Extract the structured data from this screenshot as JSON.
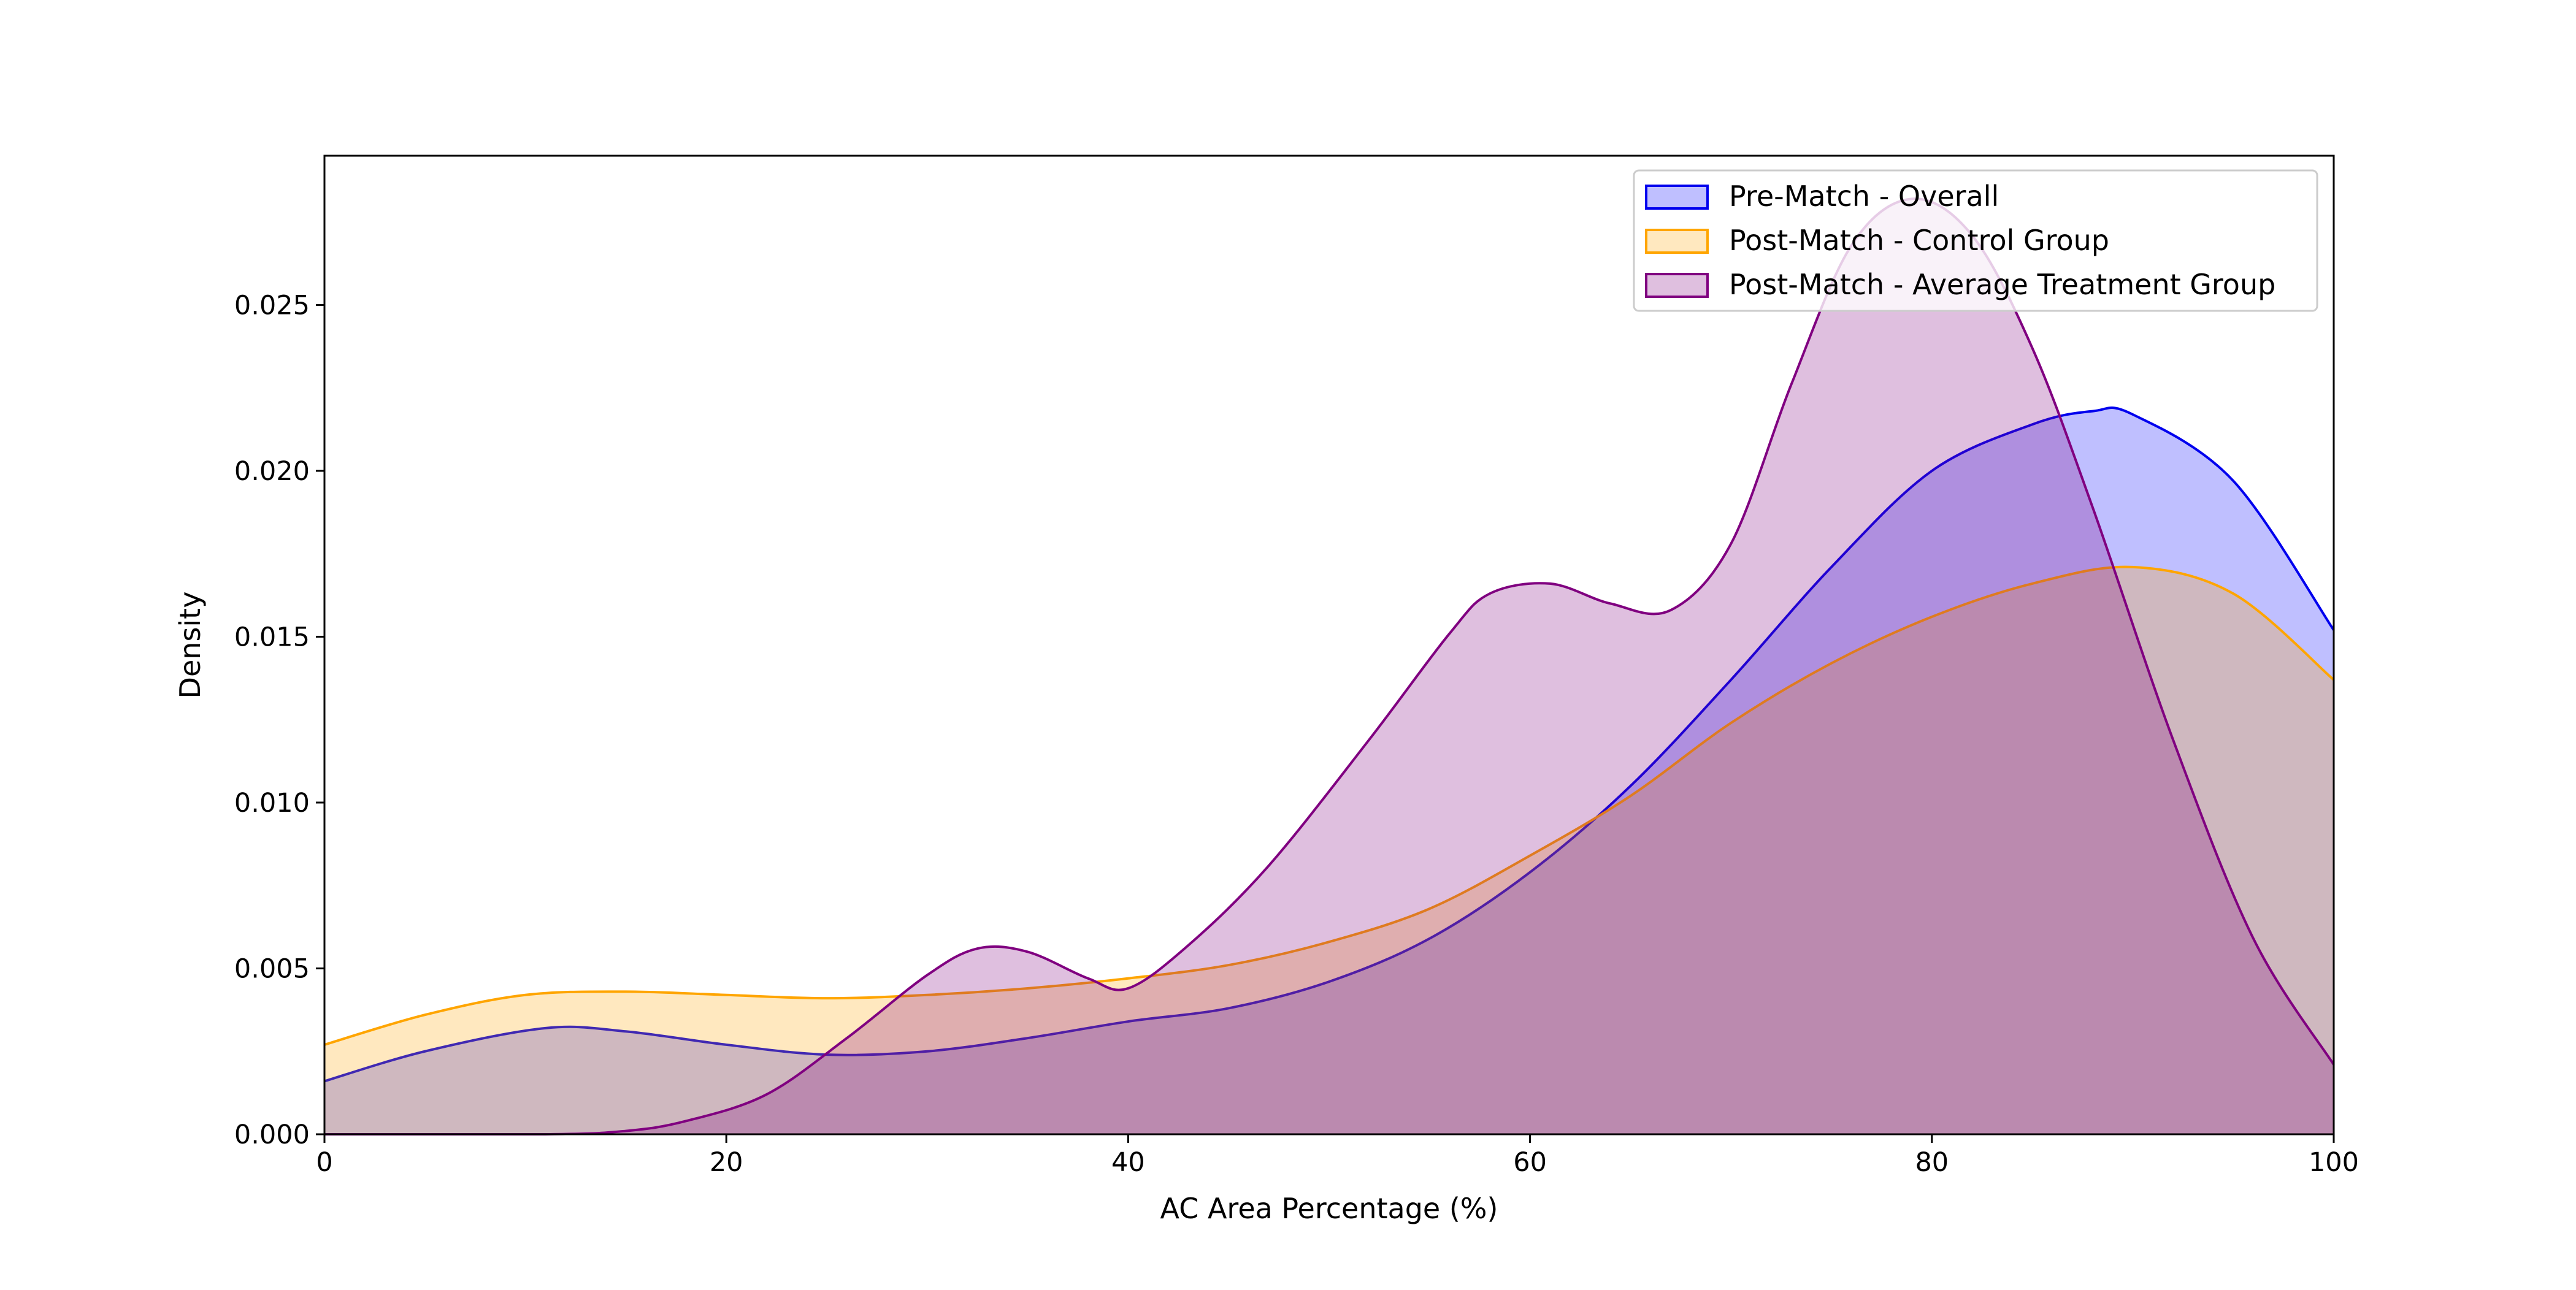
{
  "chart_data": {
    "type": "area",
    "title": "",
    "xlabel": "AC Area Percentage (%)",
    "ylabel": "Density",
    "xlim": [
      0,
      100
    ],
    "ylim": [
      0,
      0.0295
    ],
    "grid": false,
    "legend_position": "top-right",
    "x_ticks": [
      0,
      20,
      40,
      60,
      80,
      100
    ],
    "x_tick_labels": [
      "0",
      "20",
      "40",
      "60",
      "80",
      "100"
    ],
    "y_ticks": [
      0.0,
      0.005,
      0.01,
      0.015,
      0.02,
      0.025
    ],
    "y_tick_labels": [
      "0.000",
      "0.005",
      "0.010",
      "0.015",
      "0.020",
      "0.025"
    ],
    "series": [
      {
        "name": "Pre-Match - Overall",
        "color": "#0000ee",
        "fill": "#0000ff",
        "x": [
          0,
          5,
          11,
          15,
          20,
          25,
          30,
          35,
          40,
          45,
          50,
          55,
          60,
          65,
          70,
          75,
          80,
          85,
          88,
          90,
          95,
          100
        ],
        "y": [
          0.0016,
          0.0025,
          0.0032,
          0.0031,
          0.0027,
          0.0024,
          0.0025,
          0.0029,
          0.0034,
          0.0038,
          0.0046,
          0.0059,
          0.0079,
          0.0105,
          0.0137,
          0.0171,
          0.02,
          0.0214,
          0.0218,
          0.0217,
          0.0197,
          0.0152
        ]
      },
      {
        "name": "Post-Match - Control Group",
        "color": "#ffa500",
        "fill": "#ffa500",
        "x": [
          0,
          5,
          10,
          15,
          20,
          25,
          30,
          35,
          40,
          45,
          50,
          55,
          60,
          65,
          70,
          75,
          80,
          85,
          90,
          95,
          100
        ],
        "y": [
          0.0027,
          0.0036,
          0.0042,
          0.0043,
          0.0042,
          0.0041,
          0.0042,
          0.0044,
          0.0047,
          0.0051,
          0.0058,
          0.0068,
          0.0084,
          0.0102,
          0.0124,
          0.0142,
          0.0156,
          0.0166,
          0.0171,
          0.0163,
          0.0137
        ]
      },
      {
        "name": "Post-Match - Average Treatment Group",
        "color": "#800080",
        "fill": "#800080",
        "x": [
          0,
          11,
          15,
          18,
          22,
          26,
          30,
          32.5,
          35,
          38,
          40,
          43,
          47,
          52,
          56,
          58,
          61,
          64,
          67,
          70,
          73,
          76,
          79,
          82,
          85,
          88,
          92,
          96,
          100
        ],
        "y": [
          0.0,
          0.0,
          0.0001,
          0.0004,
          0.0012,
          0.0029,
          0.0048,
          0.0056,
          0.0055,
          0.0047,
          0.0044,
          0.0057,
          0.0081,
          0.0119,
          0.0151,
          0.0163,
          0.0166,
          0.016,
          0.0158,
          0.0178,
          0.0226,
          0.0268,
          0.0282,
          0.0271,
          0.0237,
          0.0189,
          0.0119,
          0.0059,
          0.0021
        ]
      }
    ]
  }
}
